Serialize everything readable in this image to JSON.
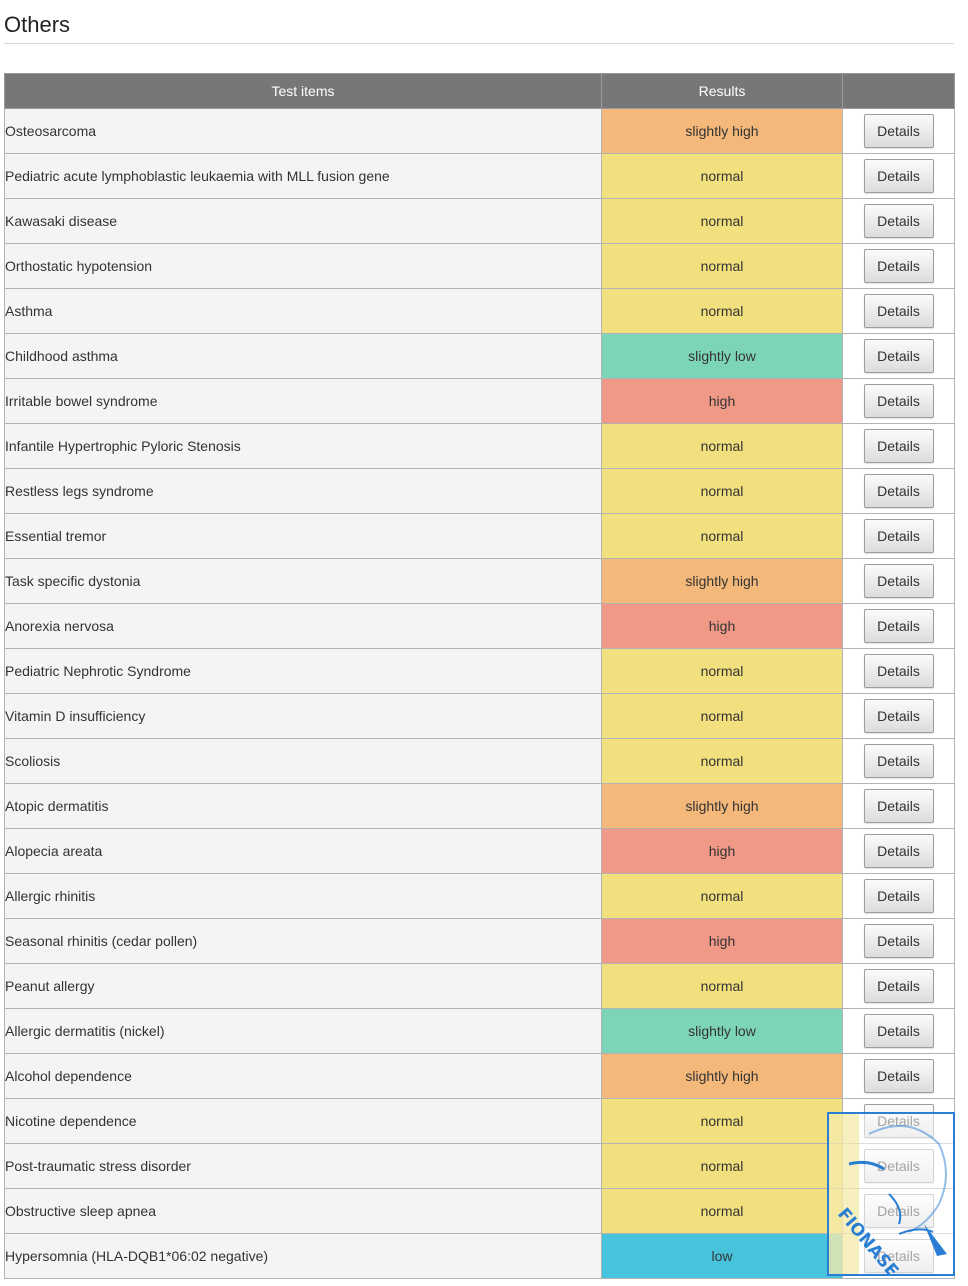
{
  "page": {
    "title": "Others"
  },
  "colors": {
    "slightly high": "#f4b87a",
    "normal": "#f2e07e",
    "slightly low": "#7dd5b9",
    "high": "#ef9986",
    "low": "#47c4dc"
  },
  "table": {
    "headers": [
      "Test items",
      "Results",
      ""
    ],
    "action_label": "Details",
    "rows": [
      {
        "item": "Osteosarcoma",
        "result": "slightly high"
      },
      {
        "item": "Pediatric acute lymphoblastic leukaemia with MLL fusion gene",
        "result": "normal"
      },
      {
        "item": "Kawasaki disease",
        "result": "normal"
      },
      {
        "item": "Orthostatic hypotension",
        "result": "normal"
      },
      {
        "item": "Asthma",
        "result": "normal"
      },
      {
        "item": "Childhood asthma",
        "result": "slightly low"
      },
      {
        "item": "Irritable bowel syndrome",
        "result": "high"
      },
      {
        "item": "Infantile Hypertrophic Pyloric Stenosis",
        "result": "normal"
      },
      {
        "item": "Restless legs syndrome",
        "result": "normal"
      },
      {
        "item": "Essential tremor",
        "result": "normal"
      },
      {
        "item": "Task specific dystonia",
        "result": "slightly high"
      },
      {
        "item": "Anorexia nervosa",
        "result": "high"
      },
      {
        "item": "Pediatric Nephrotic Syndrome",
        "result": "normal"
      },
      {
        "item": "Vitamin D insufficiency",
        "result": "normal"
      },
      {
        "item": "Scoliosis",
        "result": "normal"
      },
      {
        "item": "Atopic dermatitis",
        "result": "slightly high"
      },
      {
        "item": "Alopecia areata",
        "result": "high"
      },
      {
        "item": "Allergic rhinitis",
        "result": "normal"
      },
      {
        "item": "Seasonal rhinitis (cedar pollen)",
        "result": "high"
      },
      {
        "item": "Peanut allergy",
        "result": "normal"
      },
      {
        "item": "Allergic dermatitis (nickel)",
        "result": "slightly low"
      },
      {
        "item": "Alcohol dependence",
        "result": "slightly high"
      },
      {
        "item": "Nicotine dependence",
        "result": "normal"
      },
      {
        "item": "Post-traumatic stress disorder",
        "result": "normal"
      },
      {
        "item": "Obstructive sleep apnea",
        "result": "normal"
      },
      {
        "item": "Hypersomnia (HLA-DQB1*06:02 negative)",
        "result": "low"
      }
    ]
  },
  "watermark": {
    "text": "FIONASEAH.com"
  }
}
